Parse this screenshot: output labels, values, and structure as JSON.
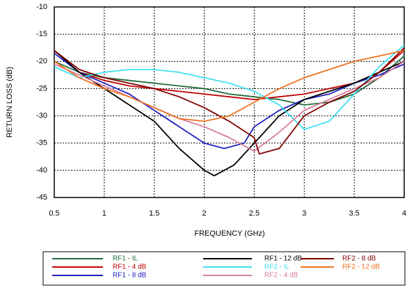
{
  "chart_data": {
    "type": "line",
    "xlabel": "FREQUENCY (GHz)",
    "ylabel": "RETURN LOSS (dB)",
    "xlim": [
      0.5,
      4
    ],
    "xticks": [
      0.5,
      1,
      1.5,
      2,
      2.5,
      3,
      3.5,
      4
    ],
    "ylim": [
      -45,
      -10
    ],
    "yticks": [
      -10,
      -15,
      -20,
      -25,
      -30,
      -35,
      -40,
      -45
    ],
    "grid": true,
    "legend": "bottom",
    "series": [
      {
        "name": "RF1 - IL",
        "color": "#1e6b3a",
        "x": [
          0.5,
          0.75,
          1,
          1.25,
          1.5,
          1.75,
          2,
          2.25,
          2.5,
          2.75,
          3,
          3.25,
          3.5,
          3.75,
          4
        ],
        "values": [
          -20,
          -22,
          -23,
          -23.5,
          -24,
          -24.5,
          -25,
          -26,
          -26.5,
          -27,
          -28,
          -27.5,
          -26,
          -23,
          -19
        ]
      },
      {
        "name": "RF1 - 4 dB",
        "color": "#c00000",
        "x": [
          0.5,
          0.75,
          1,
          1.25,
          1.5,
          1.75,
          2,
          2.25,
          2.5,
          2.75,
          3,
          3.25,
          3.5,
          3.75,
          4
        ],
        "values": [
          -18,
          -22,
          -23.5,
          -24.5,
          -25,
          -25.5,
          -26,
          -26.5,
          -27,
          -26.5,
          -26,
          -25,
          -24,
          -22,
          -18
        ]
      },
      {
        "name": "RF1 - 8 dB",
        "color": "#2020c0",
        "x": [
          0.5,
          0.75,
          1,
          1.25,
          1.5,
          1.75,
          2,
          2.2,
          2.4,
          2.5,
          2.75,
          3,
          3.25,
          3.5,
          3.75,
          4
        ],
        "values": [
          -18.5,
          -22,
          -24,
          -26,
          -29,
          -32,
          -35,
          -36,
          -35,
          -32,
          -29,
          -27,
          -26,
          -24,
          -22.5,
          -20.5
        ]
      },
      {
        "name": "RF1 - 12 dB",
        "color": "#000000",
        "x": [
          0.5,
          0.75,
          1,
          1.25,
          1.5,
          1.75,
          2,
          2.1,
          2.3,
          2.5,
          2.75,
          3,
          3.25,
          3.5,
          3.75,
          4
        ],
        "values": [
          -18,
          -22,
          -25,
          -28,
          -31,
          -36,
          -40,
          -41,
          -39,
          -35,
          -30,
          -27,
          -25.5,
          -24,
          -22,
          -20
        ]
      },
      {
        "name": "RF2 - IL",
        "color": "#40e0f0",
        "x": [
          0.5,
          0.75,
          1,
          1.25,
          1.5,
          1.75,
          2,
          2.25,
          2.5,
          2.75,
          3,
          3.25,
          3.5,
          3.75,
          4
        ],
        "values": [
          -21,
          -23,
          -22,
          -21.5,
          -21.5,
          -22,
          -23,
          -24,
          -25.5,
          -28,
          -32.5,
          -31,
          -26,
          -21,
          -17
        ]
      },
      {
        "name": "RF2 - 4 dB",
        "color": "#d87ca0",
        "x": [
          0.5,
          0.75,
          1,
          1.25,
          1.5,
          1.75,
          2,
          2.25,
          2.5,
          2.75,
          3,
          3.25,
          3.5,
          3.75,
          4
        ],
        "values": [
          -20.5,
          -22.5,
          -24.5,
          -26.5,
          -28.5,
          -30.5,
          -32,
          -34,
          -36.5,
          -33,
          -29,
          -27,
          -25,
          -23,
          -20
        ]
      },
      {
        "name": "RF2 - 8 dB",
        "color": "#800000",
        "x": [
          0.5,
          0.75,
          1,
          1.25,
          1.5,
          1.75,
          2,
          2.25,
          2.5,
          2.55,
          2.75,
          3,
          3.25,
          3.5,
          3.75,
          4
        ],
        "values": [
          -18,
          -21.5,
          -23,
          -24,
          -25,
          -26.5,
          -28.5,
          -31,
          -34,
          -37,
          -36,
          -30,
          -27.5,
          -25.5,
          -22,
          -17.5
        ]
      },
      {
        "name": "RF2 - 12 dB",
        "color": "#f07020",
        "x": [
          0.5,
          0.75,
          1,
          1.25,
          1.5,
          1.75,
          2,
          2.25,
          2.5,
          2.75,
          3,
          3.25,
          3.5,
          3.75,
          4
        ],
        "values": [
          -20,
          -23,
          -25,
          -26.5,
          -28.5,
          -30.5,
          -31,
          -30,
          -27.5,
          -25,
          -23,
          -21.5,
          -20,
          -19,
          -18
        ]
      }
    ]
  }
}
